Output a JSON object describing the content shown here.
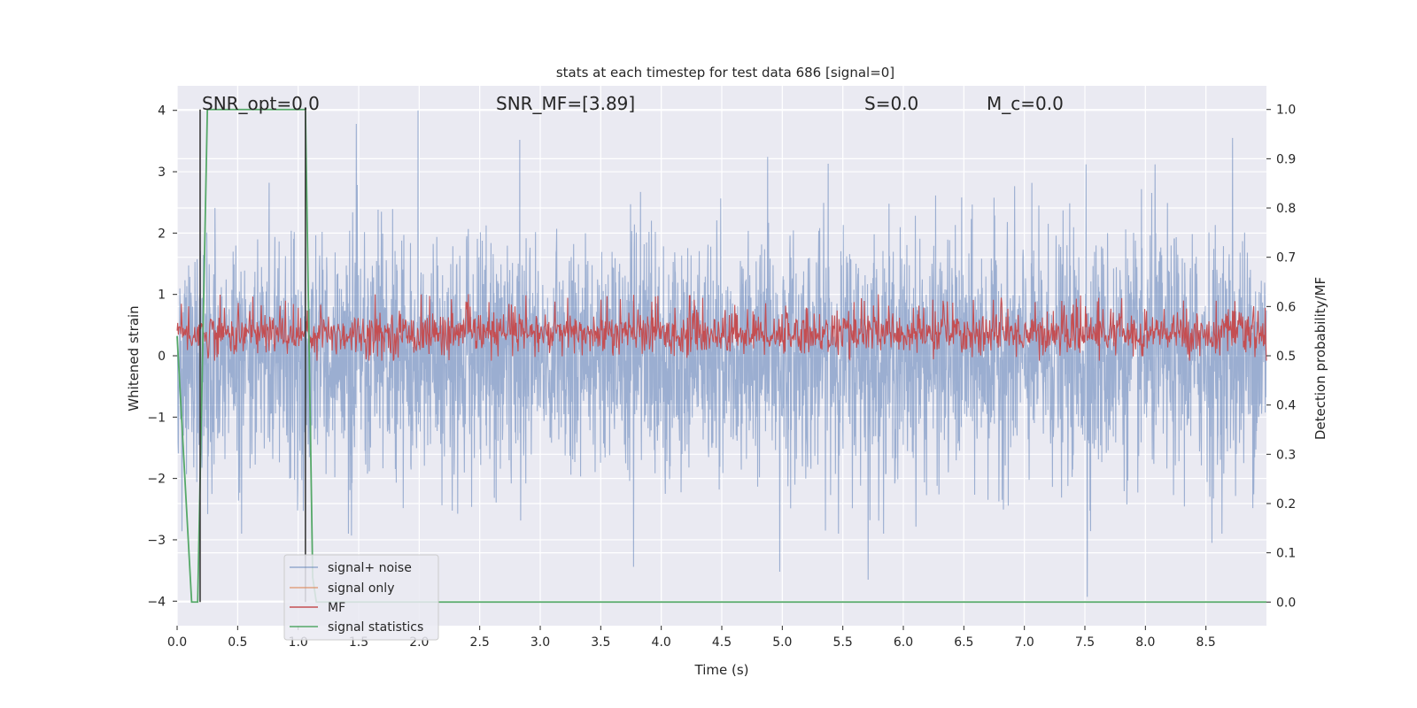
{
  "chart_data": {
    "type": "line",
    "title": "stats at each timestep for test data 686 [signal=0]",
    "xlabel": "Time (s)",
    "ylabel": "Whitened strain",
    "y2label": "Detection probability/MF",
    "xlim": [
      0.0,
      9.0
    ],
    "ylim": [
      -4.4,
      4.4
    ],
    "y2lim": [
      -0.048,
      1.048
    ],
    "x_ticks": [
      "0.0",
      "0.5",
      "1.0",
      "1.5",
      "2.0",
      "2.5",
      "3.0",
      "3.5",
      "4.0",
      "4.5",
      "5.0",
      "5.5",
      "6.0",
      "6.5",
      "7.0",
      "7.5",
      "8.0",
      "8.5"
    ],
    "y_ticks": [
      "4",
      "3",
      "2",
      "1",
      "0",
      "−1",
      "−2",
      "−3",
      "−4"
    ],
    "y2_ticks": [
      "1.0",
      "0.9",
      "0.8",
      "0.7",
      "0.6",
      "0.5",
      "0.4",
      "0.3",
      "0.2",
      "0.1",
      "0.0"
    ],
    "grid": true,
    "legend_position": "lower-left",
    "annotations": [
      {
        "text": "SNR_opt=0.0"
      },
      {
        "text": "SNR_MF=[3.89]"
      },
      {
        "text": "S=0.0"
      },
      {
        "text": "M_c=0.0"
      }
    ],
    "series": [
      {
        "name": "signal+ noise",
        "axis": "left",
        "color": "#4c72b0",
        "envelope_note": "dense noise trace, typical range about -2.5 to 2.6",
        "peaks": [
          [
            0.76,
            2.82
          ],
          [
            1.48,
            3.78
          ],
          [
            1.99,
            4.0
          ],
          [
            2.83,
            3.52
          ],
          [
            4.88,
            3.24
          ],
          [
            5.38,
            3.13
          ],
          [
            7.51,
            3.12
          ],
          [
            8.08,
            3.12
          ],
          [
            8.72,
            3.55
          ]
        ],
        "troughs": [
          [
            0.04,
            -2.86
          ],
          [
            1.44,
            -2.93
          ],
          [
            3.77,
            -3.44
          ],
          [
            4.98,
            -3.52
          ],
          [
            5.71,
            -3.65
          ],
          [
            7.52,
            -3.93
          ],
          [
            8.55,
            -3.05
          ]
        ]
      },
      {
        "name": "signal only",
        "axis": "left",
        "color": "#dd8452",
        "values": []
      },
      {
        "name": "MF",
        "axis": "right",
        "color": "#c44e52",
        "envelope_note": "dense trace, typical range about 0.50 to 0.62",
        "range": [
          0.49,
          0.625
        ]
      },
      {
        "name": "signal statistics",
        "axis": "right",
        "color": "#55a868",
        "x": [
          0.0,
          0.12,
          0.17,
          0.25,
          1.0,
          1.06,
          1.12,
          1.15,
          9.0
        ],
        "y": [
          0.54,
          0.0,
          0.0,
          1.0,
          1.0,
          1.0,
          0.05,
          0.0,
          0.0
        ]
      }
    ],
    "vlines": [
      0.19,
      1.06
    ]
  }
}
